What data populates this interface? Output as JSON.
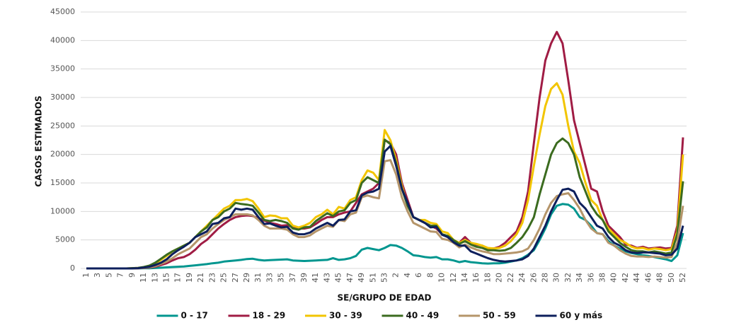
{
  "chart_data": {
    "type": "line",
    "ylabel": "CASOS ESTIMADOS",
    "xlabel": "SE/GRUPO DE EDAD",
    "ylim": [
      0,
      45000
    ],
    "yticks": [
      0,
      5000,
      10000,
      15000,
      20000,
      25000,
      30000,
      35000,
      40000,
      45000
    ],
    "grid": true,
    "legend": "bottom",
    "categories": [
      "1",
      null,
      "3",
      null,
      "5",
      null,
      "7",
      null,
      "9",
      null,
      "11",
      null,
      "13",
      null,
      "15",
      null,
      "17",
      null,
      "19",
      null,
      "21",
      null,
      "23",
      null,
      "25",
      null,
      "27",
      null,
      "29",
      null,
      "31",
      null,
      "33",
      null,
      "35",
      null,
      "37",
      null,
      "39",
      null,
      "41",
      null,
      "43",
      null,
      "45",
      null,
      "47",
      null,
      "49",
      null,
      "51",
      null,
      "53",
      null,
      "2",
      null,
      "4",
      null,
      "6",
      null,
      "8",
      null,
      "10",
      null,
      "12",
      null,
      "14",
      null,
      "16",
      null,
      "18",
      null,
      "20",
      null,
      "22",
      null,
      "24",
      null,
      "26",
      null,
      "28",
      null,
      "30",
      null,
      "32",
      null,
      "34",
      null,
      "36",
      null,
      "38",
      null,
      "40",
      null,
      "42",
      null,
      "44",
      null,
      "46",
      null,
      "48",
      null,
      "50",
      null,
      "52"
    ],
    "series": [
      {
        "name": "0 - 17",
        "color": "#00968f",
        "values": [
          0,
          0,
          0,
          0,
          0,
          0,
          0,
          0,
          0,
          10,
          20,
          40,
          80,
          120,
          180,
          250,
          300,
          350,
          450,
          550,
          650,
          750,
          900,
          1000,
          1200,
          1300,
          1400,
          1500,
          1650,
          1700,
          1500,
          1400,
          1450,
          1500,
          1550,
          1600,
          1400,
          1350,
          1300,
          1350,
          1400,
          1450,
          1500,
          1800,
          1500,
          1600,
          1800,
          2200,
          3300,
          3600,
          3400,
          3200,
          3600,
          4100,
          4000,
          3600,
          3000,
          2300,
          2200,
          2000,
          1900,
          2000,
          1600,
          1600,
          1400,
          1100,
          1300,
          1100,
          1000,
          900,
          850,
          900,
          900,
          1000,
          1200,
          1400,
          1800,
          2400,
          3200,
          5000,
          7000,
          9500,
          11000,
          11300,
          11200,
          10500,
          9000,
          8500,
          7500,
          6200,
          6000,
          4800,
          4000,
          3500,
          3000,
          2700,
          2500,
          2300,
          2200,
          2000,
          1800,
          1600,
          1300,
          2300,
          6200
        ]
      },
      {
        "name": "18 - 29",
        "color": "#a01c44",
        "values": [
          0,
          0,
          0,
          0,
          0,
          0,
          0,
          0,
          0,
          20,
          80,
          150,
          300,
          600,
          900,
          1400,
          1800,
          2000,
          2500,
          3300,
          4300,
          5000,
          6000,
          7000,
          7800,
          8500,
          9000,
          9200,
          9300,
          9200,
          8800,
          8400,
          8000,
          7800,
          7500,
          7600,
          7200,
          7000,
          7000,
          7200,
          7800,
          8500,
          9000,
          9000,
          9500,
          9800,
          10000,
          11500,
          13000,
          13500,
          14000,
          15000,
          22500,
          22000,
          20000,
          15000,
          12000,
          9000,
          8500,
          8000,
          7500,
          7000,
          6000,
          5500,
          4500,
          4500,
          5500,
          4500,
          4200,
          4000,
          3500,
          3500,
          3800,
          4500,
          5500,
          6500,
          9000,
          13500,
          22000,
          30000,
          36500,
          39500,
          41500,
          39500,
          33000,
          26000,
          22000,
          18000,
          14000,
          13500,
          10000,
          7500,
          6500,
          5500,
          4200,
          4000,
          3600,
          3800,
          3500,
          3600,
          3700,
          3500,
          3600,
          7500,
          23000
        ]
      },
      {
        "name": "30 - 39",
        "color": "#f2c500",
        "values": [
          0,
          0,
          0,
          0,
          0,
          0,
          0,
          0,
          50,
          100,
          200,
          400,
          800,
          1500,
          2200,
          3000,
          3500,
          4000,
          4500,
          5500,
          6500,
          7500,
          8500,
          9500,
          10500,
          11000,
          12000,
          12000,
          12200,
          11800,
          10500,
          9000,
          9300,
          9200,
          8800,
          8800,
          7500,
          7200,
          7500,
          8000,
          9000,
          9500,
          10300,
          9500,
          10800,
          10500,
          12000,
          12500,
          15500,
          17200,
          16800,
          15500,
          24300,
          22500,
          19000,
          14500,
          11000,
          9000,
          8500,
          8500,
          8000,
          7800,
          6500,
          6200,
          5000,
          4500,
          5000,
          4500,
          4300,
          4000,
          3600,
          3500,
          3600,
          4000,
          4800,
          6000,
          8000,
          12000,
          18000,
          23500,
          28500,
          31500,
          32500,
          30500,
          25000,
          20500,
          18500,
          15000,
          12000,
          11000,
          8500,
          7000,
          6000,
          5000,
          4500,
          3800,
          3500,
          3600,
          3300,
          3500,
          3400,
          3200,
          3400,
          6500,
          20000
        ]
      },
      {
        "name": "40 - 49",
        "color": "#3b6b1f",
        "values": [
          0,
          0,
          0,
          0,
          0,
          0,
          0,
          0,
          50,
          100,
          250,
          500,
          1000,
          1700,
          2400,
          3000,
          3500,
          4000,
          4500,
          5500,
          6500,
          7200,
          8500,
          9000,
          10000,
          10500,
          11500,
          11300,
          11200,
          11000,
          9800,
          8500,
          8300,
          8500,
          8300,
          8000,
          7000,
          6800,
          7200,
          7300,
          8300,
          9000,
          9700,
          9200,
          10000,
          10200,
          11500,
          12000,
          15000,
          16000,
          15500,
          15000,
          22600,
          21800,
          18500,
          14000,
          11000,
          9000,
          8500,
          8000,
          7500,
          7500,
          6000,
          5700,
          5000,
          4300,
          4800,
          4200,
          3800,
          3600,
          3200,
          3200,
          3100,
          3200,
          3600,
          4500,
          5500,
          7000,
          9000,
          13000,
          16500,
          20000,
          22000,
          22800,
          22000,
          20000,
          16000,
          13500,
          11000,
          9500,
          8500,
          6500,
          5500,
          4500,
          3800,
          3200,
          3000,
          3000,
          2800,
          3000,
          2800,
          2600,
          2800,
          6000,
          15300
        ]
      },
      {
        "name": "50 - 59",
        "color": "#b5956a",
        "values": [
          0,
          0,
          0,
          0,
          0,
          0,
          0,
          0,
          0,
          50,
          100,
          200,
          400,
          800,
          1200,
          1800,
          2500,
          3000,
          3500,
          4500,
          5500,
          6000,
          7000,
          7800,
          8500,
          9000,
          9500,
          9500,
          9500,
          9300,
          8500,
          7500,
          7000,
          7000,
          7000,
          6800,
          6000,
          5500,
          5500,
          5800,
          6500,
          7000,
          7500,
          7300,
          8500,
          8300,
          9500,
          9800,
          12500,
          12800,
          12500,
          12300,
          18800,
          19000,
          16500,
          12500,
          10000,
          8000,
          7500,
          7000,
          6500,
          6400,
          5200,
          5000,
          4500,
          3700,
          4200,
          3700,
          3300,
          3000,
          2800,
          2500,
          2500,
          2600,
          2700,
          2800,
          3000,
          3500,
          5000,
          7000,
          9500,
          11500,
          12700,
          13000,
          13200,
          12000,
          10500,
          8500,
          7000,
          6200,
          6000,
          4500,
          4000,
          3200,
          2600,
          2200,
          2100,
          2100,
          2000,
          2100,
          2000,
          1900,
          2000,
          4500,
          11000
        ]
      },
      {
        "name": "60 y más",
        "color": "#0d1f5c",
        "values": [
          0,
          0,
          0,
          0,
          0,
          0,
          0,
          0,
          0,
          50,
          150,
          300,
          600,
          1000,
          1600,
          2500,
          3200,
          3800,
          4500,
          5500,
          6000,
          6500,
          7800,
          8000,
          8800,
          9000,
          10500,
          10300,
          10500,
          10300,
          9000,
          7800,
          7900,
          7500,
          7200,
          7300,
          6300,
          6000,
          6000,
          6300,
          7000,
          7500,
          8000,
          7500,
          8500,
          8600,
          10000,
          10200,
          12800,
          13300,
          13500,
          14000,
          20500,
          21500,
          18000,
          14000,
          11500,
          9000,
          8500,
          8000,
          7200,
          7300,
          5900,
          5500,
          4600,
          4000,
          4000,
          3000,
          2600,
          2200,
          1800,
          1500,
          1300,
          1200,
          1300,
          1400,
          1600,
          2200,
          3500,
          5500,
          7500,
          10000,
          12000,
          13800,
          14000,
          13500,
          11500,
          10500,
          9000,
          7500,
          7000,
          5500,
          4500,
          4000,
          3200,
          2800,
          2700,
          2800,
          2800,
          2700,
          2600,
          2300,
          2400,
          3500,
          7500
        ]
      }
    ]
  }
}
